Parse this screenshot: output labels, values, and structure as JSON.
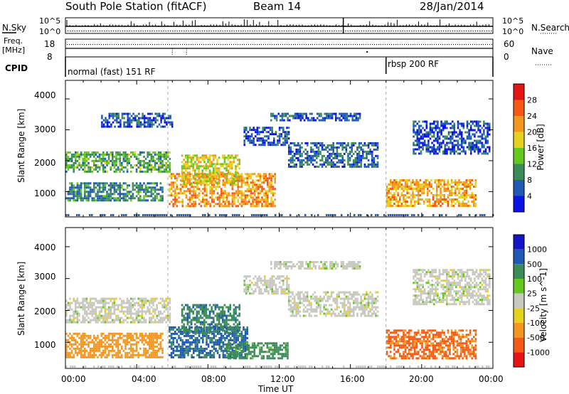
{
  "header": {
    "title": "South Pole Station (fitACF)",
    "beam": "Beam 14",
    "date": "28/Jan/2014"
  },
  "top_panels": {
    "nsky_label": "N.Sky",
    "nsearch_label": "N.Search",
    "noise_ticks": [
      "10^5",
      "10^0"
    ],
    "freq_label_line1": "Freq.",
    "freq_label_line2": "[MHz]",
    "freq_ticks": [
      "18",
      "8"
    ],
    "nave_label": "Nave",
    "nave_ticks": [
      "60",
      "0"
    ],
    "cpid_label": "CPID",
    "cpid_segments": [
      {
        "label": "normal (fast) 151 RF",
        "start_hour": 0,
        "end_hour": 18
      },
      {
        "label": "rbsp 200 RF",
        "start_hour": 18,
        "end_hour": 24
      }
    ]
  },
  "chart_data": [
    {
      "type": "heatmap",
      "title": "",
      "xlabel": "Time UT",
      "ylabel": "Slant Range [km]",
      "xlim": [
        0,
        24
      ],
      "ylim": [
        180,
        4600
      ],
      "x_ticks": [
        "00:00",
        "04:00",
        "08:00",
        "12:00",
        "16:00",
        "20:00",
        "00:00"
      ],
      "y_ticks": [
        "1000",
        "2000",
        "3000",
        "4000"
      ],
      "colorbar_label": "Power [dB]",
      "colorbar_ticks": [
        "4",
        "8",
        "12",
        "16",
        "20",
        "24",
        "28"
      ],
      "colorbar_colors": [
        "#0a14e6",
        "#1e5ab4",
        "#3c8c5a",
        "#64c81e",
        "#e6d21e",
        "#f5961e",
        "#f55a14",
        "#e61414"
      ],
      "regions": [
        {
          "t": [
            0.0,
            5.9
          ],
          "r": [
            1650,
            2300
          ],
          "v": 12
        },
        {
          "t": [
            0.0,
            5.4
          ],
          "r": [
            700,
            1300
          ],
          "v": 9
        },
        {
          "t": [
            5.8,
            11.8
          ],
          "r": [
            520,
            1600
          ],
          "v": 22
        },
        {
          "t": [
            6.5,
            9.8
          ],
          "r": [
            1300,
            2200
          ],
          "v": 18
        },
        {
          "t": [
            10.0,
            12.5
          ],
          "r": [
            2500,
            3100
          ],
          "v": 5
        },
        {
          "t": [
            12.5,
            17.5
          ],
          "r": [
            1800,
            2600
          ],
          "v": 7
        },
        {
          "t": [
            11.5,
            16.5
          ],
          "r": [
            3300,
            3550
          ],
          "v": 6
        },
        {
          "t": [
            18.0,
            23.0
          ],
          "r": [
            520,
            1400
          ],
          "v": 21
        },
        {
          "t": [
            19.5,
            23.8
          ],
          "r": [
            2200,
            3300
          ],
          "v": 5
        },
        {
          "t": [
            2.0,
            6.0
          ],
          "r": [
            3100,
            3550
          ],
          "v": 5
        }
      ]
    },
    {
      "type": "heatmap",
      "title": "",
      "xlabel": "Time UT",
      "ylabel": "Slant Range [km]",
      "xlim": [
        0,
        24
      ],
      "ylim": [
        180,
        4600
      ],
      "x_ticks": [
        "00:00",
        "04:00",
        "08:00",
        "12:00",
        "16:00",
        "20:00",
        "00:00"
      ],
      "y_ticks": [
        "1000",
        "2000",
        "3000",
        "4000"
      ],
      "colorbar_label": "Velocity [m s^-1]",
      "colorbar_ticks": [
        "1000",
        "500",
        "100",
        "25",
        "-25",
        "-100",
        "-500",
        "-1000"
      ],
      "colorbar_colors": [
        "#1414c8",
        "#1e5ab4",
        "#3c8c5a",
        "#64c81e",
        "#c8c8c0",
        "#e6d21e",
        "#f5961e",
        "#f55a14",
        "#e61414"
      ],
      "regions": [
        {
          "t": [
            0.0,
            5.9
          ],
          "r": [
            1650,
            2400
          ],
          "v": 0
        },
        {
          "t": [
            0.0,
            5.4
          ],
          "r": [
            500,
            1300
          ],
          "v": -300
        },
        {
          "t": [
            5.8,
            10.2
          ],
          "r": [
            500,
            1500
          ],
          "v": 600
        },
        {
          "t": [
            9.0,
            12.5
          ],
          "r": [
            520,
            1000
          ],
          "v": 150
        },
        {
          "t": [
            6.5,
            9.8
          ],
          "r": [
            1300,
            2200
          ],
          "v": 400
        },
        {
          "t": [
            12.5,
            17.5
          ],
          "r": [
            1800,
            2600
          ],
          "v": 0
        },
        {
          "t": [
            10.0,
            12.5
          ],
          "r": [
            2500,
            3100
          ],
          "v": 0
        },
        {
          "t": [
            18.0,
            23.0
          ],
          "r": [
            500,
            1400
          ],
          "v": -600
        },
        {
          "t": [
            11.5,
            16.5
          ],
          "r": [
            3300,
            3550
          ],
          "v": 0
        },
        {
          "t": [
            19.5,
            23.8
          ],
          "r": [
            2200,
            3300
          ],
          "v": 0
        }
      ]
    }
  ]
}
